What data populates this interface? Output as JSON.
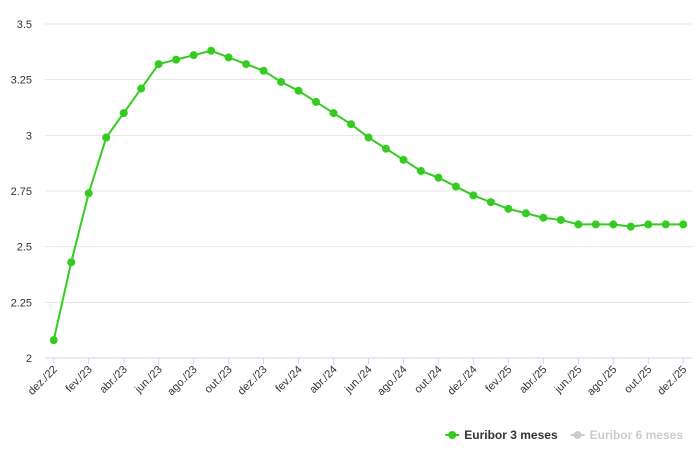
{
  "chart_data": {
    "type": "line",
    "categories": [
      "dez./22",
      null,
      "fev./23",
      null,
      "abr./23",
      null,
      "jun./23",
      null,
      "ago./23",
      null,
      "out./23",
      null,
      "dez./23",
      null,
      "fev./24",
      null,
      "abr./24",
      null,
      "jun./24",
      null,
      "ago./24",
      null,
      "out./24",
      null,
      "dez./24",
      null,
      "fev./25",
      null,
      "abr./25",
      null,
      "jun./25",
      null,
      "ago./25",
      null,
      "out./25",
      null,
      "dez./25"
    ],
    "series": [
      {
        "name": "Euribor 3 meses",
        "color": "#33cc1f",
        "visible": true,
        "values": [
          2.08,
          2.43,
          2.74,
          2.99,
          3.1,
          3.21,
          3.32,
          3.34,
          3.36,
          3.38,
          3.35,
          3.32,
          3.29,
          3.24,
          3.2,
          3.15,
          3.1,
          3.05,
          2.99,
          2.94,
          2.89,
          2.84,
          2.81,
          2.77,
          2.73,
          2.7,
          2.67,
          2.65,
          2.63,
          2.62,
          2.6,
          2.6,
          2.6,
          2.59,
          2.6,
          2.6,
          2.6
        ]
      },
      {
        "name": "Euribor 6 meses",
        "color": "#cccccc",
        "visible": false,
        "values": [
          null,
          null,
          null,
          null,
          null,
          null,
          null,
          null,
          null,
          null,
          null,
          null,
          null,
          null,
          null,
          null,
          null,
          null,
          null,
          null,
          null,
          null,
          null,
          null,
          null,
          null,
          null,
          null,
          null,
          null,
          null,
          null,
          null,
          null,
          null,
          null,
          null
        ]
      }
    ],
    "ylim": [
      2,
      3.5
    ],
    "yticks": [
      2,
      2.25,
      2.5,
      2.75,
      3,
      3.25,
      3.5
    ],
    "grid": true,
    "legend": "bottom-right"
  }
}
